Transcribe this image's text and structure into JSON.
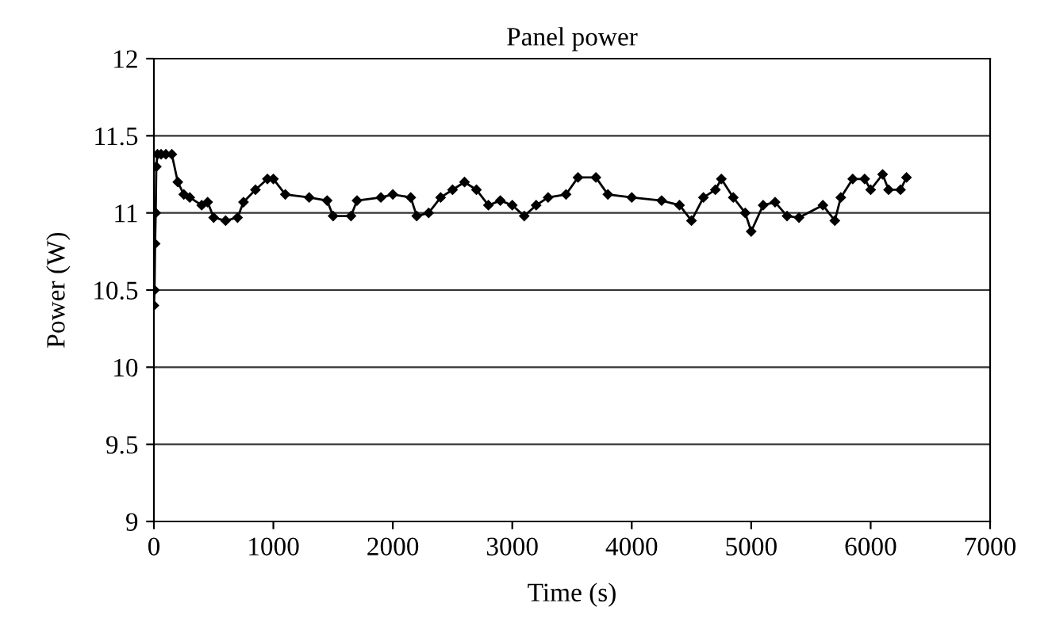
{
  "chart_data": {
    "type": "line",
    "title": "Panel power",
    "xlabel": "Time (s)",
    "ylabel": "Power (W)",
    "xlim": [
      0,
      7000
    ],
    "xticks": [
      0,
      1000,
      2000,
      3000,
      4000,
      5000,
      6000,
      7000
    ],
    "ylim": [
      9,
      12
    ],
    "yticks": [
      9,
      9.5,
      10,
      10.5,
      11,
      11.5,
      12
    ],
    "grid": "y",
    "marker": "diamond",
    "line_style": "solid",
    "series": [
      {
        "color": "#000000",
        "x": [
          0,
          5,
          10,
          15,
          20,
          30,
          60,
          100,
          150,
          200,
          250,
          300,
          400,
          450,
          500,
          600,
          700,
          750,
          850,
          950,
          1000,
          1100,
          1300,
          1450,
          1500,
          1650,
          1700,
          1900,
          2000,
          2150,
          2200,
          2300,
          2400,
          2500,
          2600,
          2700,
          2800,
          2900,
          3000,
          3100,
          3200,
          3300,
          3450,
          3550,
          3700,
          3800,
          4000,
          4250,
          4400,
          4500,
          4600,
          4700,
          4750,
          4850,
          4950,
          5000,
          5100,
          5200,
          5300,
          5400,
          5600,
          5700,
          5750,
          5850,
          5950,
          6000,
          6100,
          6150,
          6250,
          6300
        ],
        "values": [
          10.4,
          10.5,
          10.8,
          11.0,
          11.3,
          11.38,
          11.38,
          11.38,
          11.38,
          11.2,
          11.12,
          11.1,
          11.05,
          11.07,
          10.97,
          10.95,
          10.97,
          11.07,
          11.15,
          11.22,
          11.22,
          11.12,
          11.1,
          11.08,
          10.98,
          10.98,
          11.08,
          11.1,
          11.12,
          11.1,
          10.98,
          11.0,
          11.1,
          11.15,
          11.2,
          11.15,
          11.05,
          11.08,
          11.05,
          10.98,
          11.05,
          11.1,
          11.12,
          11.23,
          11.23,
          11.12,
          11.1,
          11.08,
          11.05,
          10.95,
          11.1,
          11.15,
          11.22,
          11.1,
          11.0,
          10.88,
          11.05,
          11.07,
          10.98,
          10.97,
          11.05,
          10.95,
          11.1,
          11.22,
          11.22,
          11.15,
          11.25,
          11.15,
          11.15,
          11.23
        ]
      }
    ]
  }
}
